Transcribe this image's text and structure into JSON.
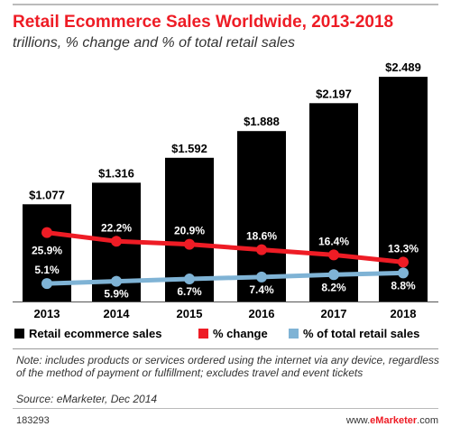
{
  "chart_data": {
    "type": "bar",
    "title": "Retail Ecommerce Sales Worldwide, 2013-2018",
    "subtitle": "trillions, % change and % of total retail sales",
    "categories": [
      "2013",
      "2014",
      "2015",
      "2016",
      "2017",
      "2018"
    ],
    "series": [
      {
        "name": "Retail ecommerce sales",
        "type": "bar",
        "color": "#000000",
        "values": [
          1.077,
          1.316,
          1.592,
          1.888,
          2.197,
          2.489
        ],
        "labels": [
          "$1.077",
          "$1.316",
          "$1.592",
          "$1.888",
          "$2.197",
          "$2.489"
        ]
      },
      {
        "name": "% change",
        "type": "line",
        "color": "#ee1c25",
        "values": [
          25.9,
          22.2,
          20.9,
          18.6,
          16.4,
          13.3
        ],
        "labels": [
          "25.9%",
          "22.2%",
          "20.9%",
          "18.6%",
          "16.4%",
          "13.3%"
        ]
      },
      {
        "name": "% of total retail sales",
        "type": "line",
        "color": "#7fb3d5",
        "values": [
          5.1,
          5.9,
          6.7,
          7.4,
          8.2,
          8.8
        ],
        "labels": [
          "5.1%",
          "5.9%",
          "6.7%",
          "7.4%",
          "8.2%",
          "8.8%"
        ]
      }
    ],
    "legend": "bottom"
  },
  "footer": {
    "note": "Note: includes products or services ordered using the internet via any device, regardless of the method of payment or fulfillment; excludes travel and event tickets",
    "source": "Source: eMarketer, Dec 2014",
    "id": "183293",
    "site_prefix": "www.",
    "site_brand": "eMarketer",
    "site_suffix": ".com"
  },
  "colors": {
    "accent": "#ee1c25",
    "bar": "#000000",
    "share": "#7fb3d5"
  }
}
